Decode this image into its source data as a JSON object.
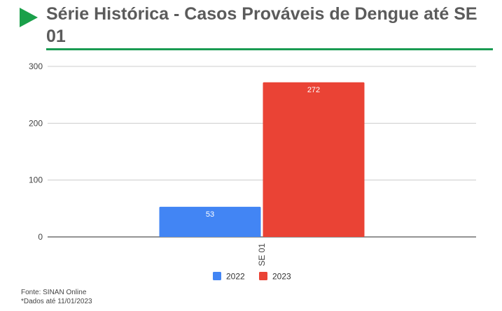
{
  "header": {
    "title": "Série Histórica - Casos Prováveis de Dengue até SE 01",
    "accent_color": "#1aa04a",
    "icon": "play-triangle-icon"
  },
  "chart_data": {
    "type": "bar",
    "title": "",
    "xlabel": "",
    "ylabel": "",
    "categories": [
      "SE 01"
    ],
    "series": [
      {
        "name": "2022",
        "values": [
          53
        ],
        "color": "#4285f4"
      },
      {
        "name": "2023",
        "values": [
          272
        ],
        "color": "#ea4335"
      }
    ],
    "ylim": [
      0,
      300
    ],
    "yticks": [
      0,
      100,
      200,
      300
    ],
    "grid": true,
    "data_labels": true,
    "legend_position": "bottom"
  },
  "footer": {
    "source": "Fonte: SINAN Online",
    "note": "*Dados até 11/01/2023"
  }
}
